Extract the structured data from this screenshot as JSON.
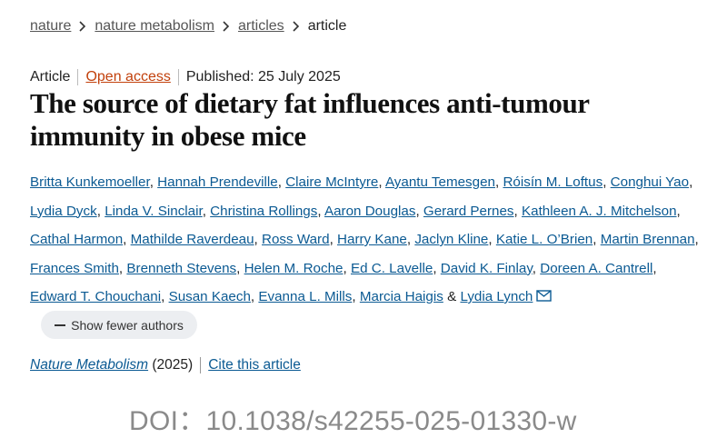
{
  "breadcrumb": [
    "nature",
    "nature metabolism",
    "articles",
    "article"
  ],
  "meta": {
    "type": "Article",
    "access": "Open access",
    "published": "Published: 25 July 2025"
  },
  "title": "The source of dietary fat influences anti-tumour immunity in obese mice",
  "authors": {
    "names": [
      "Britta Kunkemoeller",
      "Hannah Prendeville",
      "Claire McIntyre",
      "Ayantu Temesgen",
      "Róisín M. Loftus",
      "Conghui Yao",
      "Lydia Dyck",
      "Linda V. Sinclair",
      "Christina Rollings",
      "Aaron Douglas",
      "Gerard Pernes",
      "Kathleen A. J. Mitchelson",
      "Cathal Harmon",
      "Mathilde Raverdeau",
      "Ross Ward",
      "Harry Kane",
      "Jaclyn Kline",
      "Katie L. O’Brien",
      "Martin Brennan",
      "Frances Smith",
      "Brenneth Stevens",
      "Helen M. Roche",
      "Ed C. Lavelle",
      "David K. Finlay",
      "Doreen A. Cantrell",
      "Edward T. Chouchani",
      "Susan Kaech",
      "Evanna L. Mills",
      "Marcia Haigis",
      "Lydia Lynch"
    ],
    "separator": ",",
    "last_separator": "&"
  },
  "toggle_button": "Show fewer authors",
  "journal": {
    "name": "Nature Metabolism",
    "year": "(2025)",
    "cite": "Cite this article"
  },
  "doi": "DOI：10.1038/s42255-025-01330-w"
}
